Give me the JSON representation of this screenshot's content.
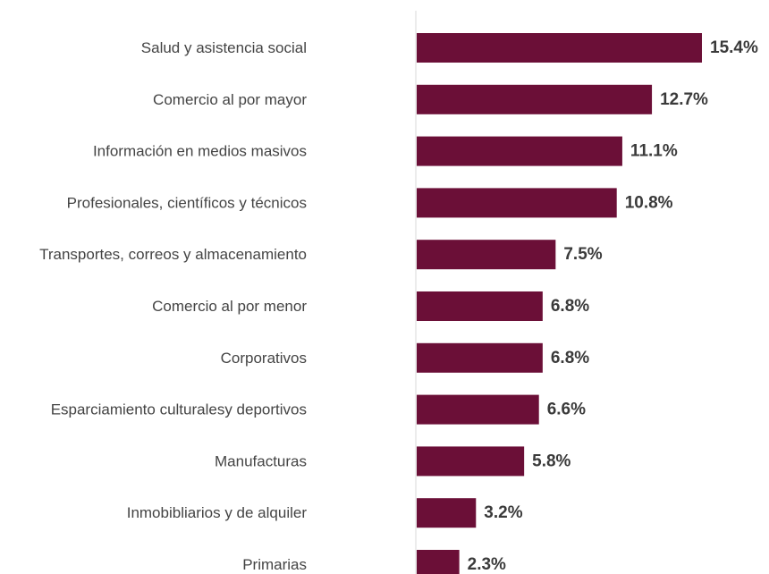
{
  "chart_data": {
    "type": "bar",
    "orientation": "horizontal",
    "categories": [
      "Salud y asistencia social",
      "Comercio al por mayor",
      "Información en medios masivos",
      "Profesionales, científicos y técnicos",
      "Transportes, correos y almacenamiento",
      "Comercio al por menor",
      "Corporativos",
      "Esparciamiento culturalesy deportivos",
      "Manufacturas",
      "Inmobibliarios y de alquiler",
      "Primarias"
    ],
    "values": [
      15.4,
      12.7,
      11.1,
      10.8,
      7.5,
      6.8,
      6.8,
      6.6,
      5.8,
      3.2,
      2.3
    ],
    "value_labels": [
      "15.4%",
      "12.7%",
      "11.1%",
      "10.8%",
      "7.5%",
      "6.8%",
      "6.8%",
      "6.6%",
      "5.8%",
      "3.2%",
      "2.3%"
    ],
    "unit": "%",
    "xlim": [
      0,
      15.4
    ],
    "bar_color": "#6b0f37",
    "grid": false,
    "legend": "none"
  }
}
